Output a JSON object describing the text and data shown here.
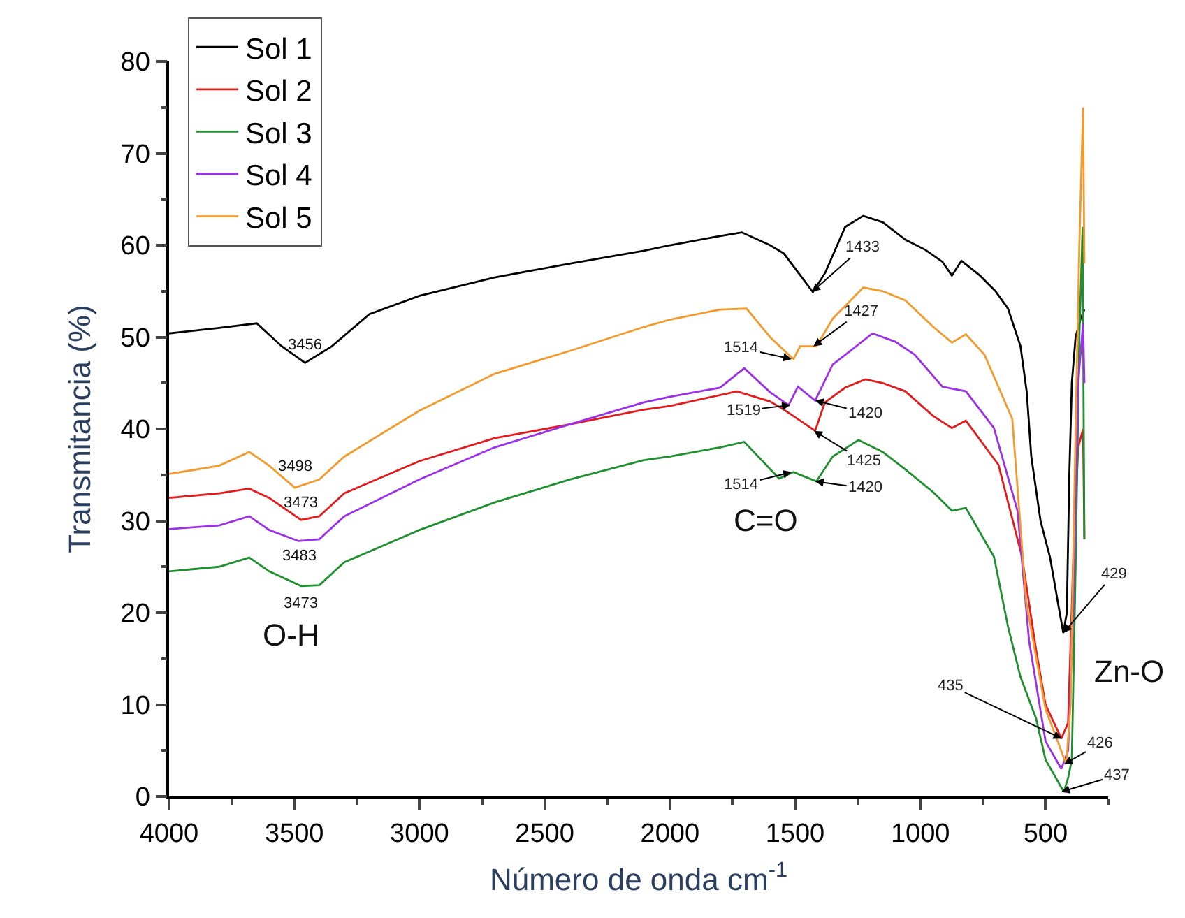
{
  "chart_data": {
    "type": "line",
    "xlabel": "Número de onda cm$^{-1}$",
    "ylabel": "Transmitancia (%)",
    "xlim": [
      4000,
      250
    ],
    "xticks": [
      4000,
      3500,
      3000,
      2500,
      2000,
      1500,
      1000,
      500
    ],
    "ylim": [
      0,
      80
    ],
    "yticks": [
      0,
      10,
      20,
      30,
      40,
      50,
      60,
      70,
      80
    ],
    "legend": "top left",
    "marker": "none",
    "line_style": "solid",
    "series": [
      {
        "name": "Sol 1",
        "color": "#000000",
        "x": [
          4000,
          3800,
          3650,
          3550,
          3457,
          3350,
          3200,
          3000,
          2700,
          2400,
          2104,
          2000,
          1800,
          1713,
          1600,
          1545,
          1429,
          1380,
          1300,
          1228,
          1150,
          1060,
          980,
          912,
          874,
          836,
          762,
          700,
          650,
          600,
          575,
          557,
          520,
          482,
          450,
          429,
          415,
          405,
          395,
          380,
          360,
          345
        ],
        "values": [
          50.4,
          51,
          51.5,
          49,
          47.2,
          49,
          52.5,
          54.5,
          56.5,
          58,
          59.4,
          60,
          61,
          61.4,
          60,
          59.1,
          54.9,
          57,
          62,
          63.2,
          62.5,
          60.6,
          59.5,
          58.2,
          56.7,
          58.3,
          56.7,
          55,
          53.1,
          49,
          44,
          37,
          30,
          26,
          21,
          17.8,
          20,
          35,
          45,
          50,
          52,
          53
        ]
      },
      {
        "name": "Sol 2",
        "color": "#e31a1c",
        "x": [
          4000,
          3800,
          3680,
          3600,
          3473,
          3400,
          3300,
          3000,
          2700,
          2400,
          2104,
          2000,
          1732,
          1600,
          1545,
          1420,
          1381,
          1300,
          1219,
          1150,
          1060,
          948,
          874,
          818,
          688,
          594,
          538,
          500,
          437,
          410,
          390,
          370,
          350,
          345
        ],
        "values": [
          32.5,
          33,
          33.5,
          32.5,
          30.1,
          30.5,
          33,
          36.5,
          39,
          40.5,
          42.1,
          42.5,
          44.1,
          43,
          42.1,
          39.8,
          42.9,
          44.5,
          45.4,
          45,
          44.1,
          41.4,
          40.1,
          40.9,
          36.1,
          26.1,
          16,
          10,
          6.3,
          8,
          25,
          38,
          40,
          28
        ]
      },
      {
        "name": "Sol 3",
        "color": "#1f8f2f",
        "x": [
          4000,
          3800,
          3680,
          3600,
          3473,
          3400,
          3300,
          3000,
          2700,
          2400,
          2104,
          2000,
          1800,
          1703,
          1564,
          1507,
          1461,
          1415,
          1350,
          1247,
          1150,
          1060,
          948,
          874,
          818,
          706,
          650,
          600,
          538,
          500,
          427,
          410,
          395,
          380,
          365,
          352,
          345
        ],
        "values": [
          24.5,
          25,
          26,
          24.5,
          22.9,
          23,
          25.5,
          29,
          32,
          34.5,
          36.6,
          37,
          38,
          38.6,
          34.6,
          35.3,
          34.8,
          34.3,
          37,
          38.8,
          37.5,
          35.6,
          33.1,
          31.1,
          31.4,
          26.1,
          18.5,
          13,
          8.5,
          4,
          0.5,
          2,
          4,
          25,
          50,
          62,
          28
        ]
      },
      {
        "name": "Sol 4",
        "color": "#9b30e8",
        "x": [
          4000,
          3800,
          3680,
          3600,
          3483,
          3400,
          3300,
          3000,
          2700,
          2400,
          2104,
          2000,
          1800,
          1703,
          1600,
          1526,
          1489,
          1420,
          1350,
          1191,
          1100,
          1023,
          912,
          818,
          706,
          612,
          566,
          500,
          437,
          410,
          390,
          370,
          350,
          345
        ],
        "values": [
          29.1,
          29.5,
          30.5,
          29,
          27.8,
          28,
          30.5,
          34.5,
          38,
          40.5,
          42.9,
          43.5,
          44.5,
          46.6,
          44,
          42.6,
          44.6,
          43.1,
          47,
          50.4,
          49.5,
          48.1,
          44.6,
          44.1,
          40.1,
          31.1,
          17,
          6,
          3,
          5,
          20,
          45,
          51.5,
          45
        ]
      },
      {
        "name": "Sol 5",
        "color": "#f39a2e",
        "x": [
          4000,
          3800,
          3680,
          3600,
          3498,
          3400,
          3300,
          3000,
          2700,
          2400,
          2104,
          2000,
          1800,
          1694,
          1600,
          1507,
          1480,
          1415,
          1350,
          1228,
          1150,
          1060,
          948,
          874,
          818,
          744,
          633,
          577,
          500,
          417,
          400,
          380,
          365,
          350,
          345
        ],
        "values": [
          35.1,
          36,
          37.5,
          36,
          33.6,
          34.5,
          37,
          42,
          46,
          48.5,
          51.1,
          51.9,
          53,
          53.1,
          50,
          47.6,
          49,
          49,
          52,
          55.4,
          55,
          54,
          51.1,
          49.4,
          50.3,
          48.1,
          41.1,
          21.1,
          9.5,
          3.5,
          10,
          40,
          60,
          75,
          58
        ]
      }
    ],
    "annotations": [
      {
        "text": "3456",
        "x": 3456,
        "y": 47.2
      },
      {
        "text": "3498",
        "x": 3498,
        "y": 33.6
      },
      {
        "text": "3473",
        "x": 3473,
        "y": 30.1
      },
      {
        "text": "3483",
        "x": 3483,
        "y": 27.8
      },
      {
        "text": "3473",
        "x": 3473,
        "y": 22.9
      },
      "O-H",
      {
        "text": "1433",
        "x": 1433,
        "y": 54.9
      },
      {
        "text": "1427",
        "x": 1427,
        "y": 49
      },
      {
        "text": "1514",
        "x": 1514,
        "y": 47.6
      },
      {
        "text": "1519",
        "x": 1519,
        "y": 42.6
      },
      {
        "text": "1420",
        "x": 1420,
        "y": 43.1
      },
      {
        "text": "1425",
        "x": 1425,
        "y": 39.8
      },
      {
        "text": "1514",
        "x": 1514,
        "y": 35.3
      },
      {
        "text": "1420",
        "x": 1420,
        "y": 34.3
      },
      "C=O",
      {
        "text": "429",
        "x": 429,
        "y": 17.8
      },
      {
        "text": "435",
        "x": 435,
        "y": 6.3
      },
      {
        "text": "426",
        "x": 426,
        "y": 3.5
      },
      {
        "text": "437",
        "x": 437,
        "y": 0.5
      },
      "Zn-O"
    ]
  }
}
